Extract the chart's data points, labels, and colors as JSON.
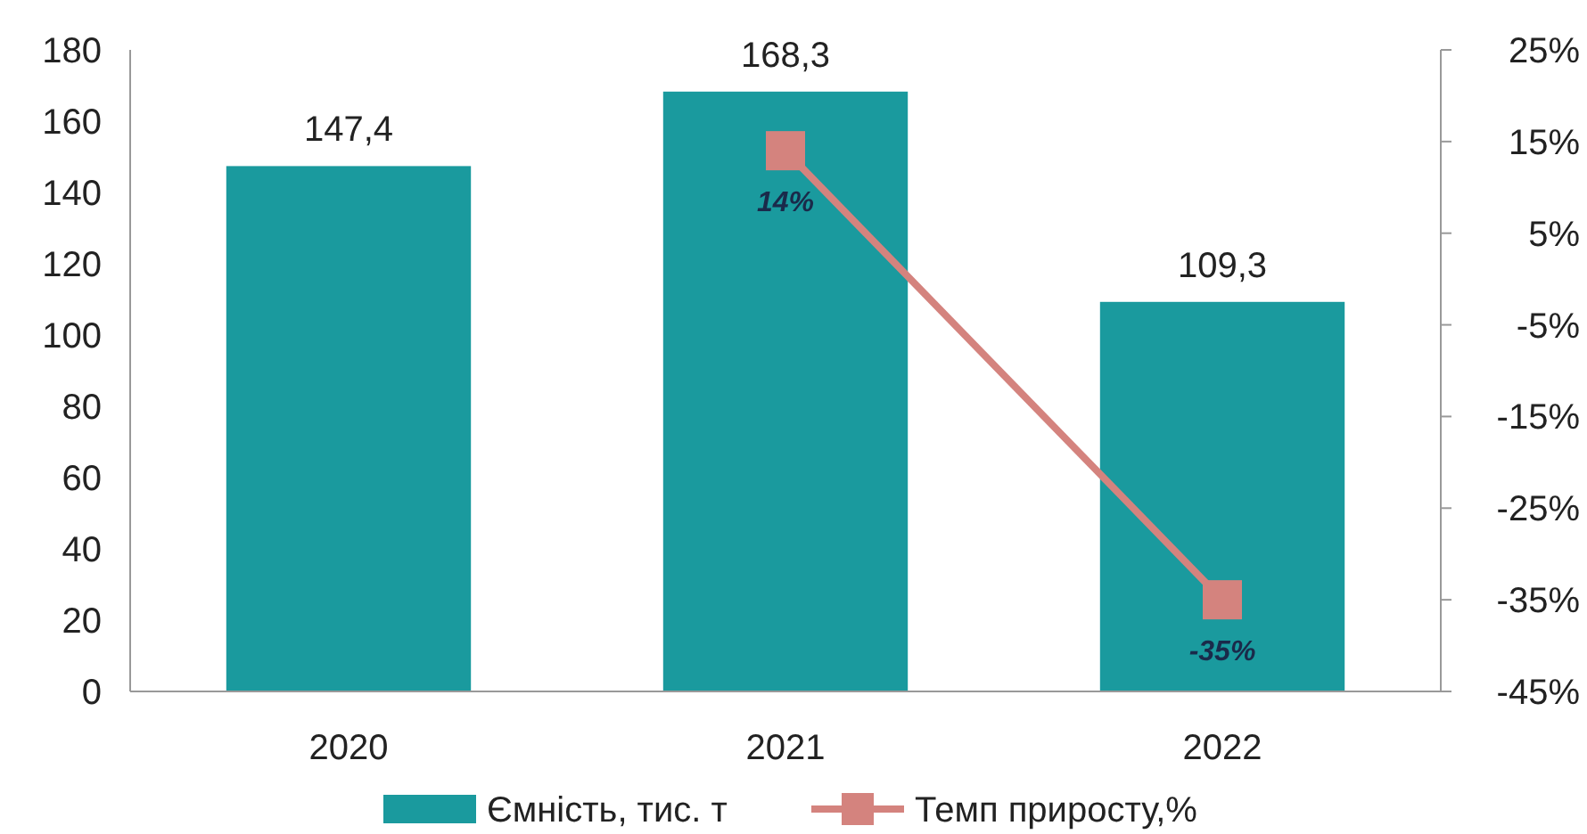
{
  "chart_data": {
    "type": "bar",
    "categories": [
      "2020",
      "2021",
      "2022"
    ],
    "series": [
      {
        "name": "Ємність, тис. т",
        "color": "#1a9a9e",
        "values": [
          147.4,
          168.3,
          109.3
        ],
        "value_labels": [
          "147,4",
          "168,3",
          "109,3"
        ]
      },
      {
        "name": "Темп приросту,%",
        "type": "line",
        "axis": "y2",
        "color": "#d4837e",
        "values": [
          null,
          14,
          -35
        ],
        "value_labels": [
          null,
          "14%",
          "-35%"
        ],
        "marker": "square"
      }
    ],
    "ylim": [
      0,
      180
    ],
    "yticks": [
      0,
      20,
      40,
      60,
      80,
      100,
      120,
      140,
      160,
      180
    ],
    "y2lim": [
      -45,
      25
    ],
    "y2ticks": [
      {
        "value": -45,
        "label": "-45%"
      },
      {
        "value": -35,
        "label": "-35%"
      },
      {
        "value": -25,
        "label": "-25%"
      },
      {
        "value": -15,
        "label": "-15%"
      },
      {
        "value": -5,
        "label": "-5%"
      },
      {
        "value": 5,
        "label": "5%"
      },
      {
        "value": 15,
        "label": "15%"
      },
      {
        "value": 25,
        "label": "25%"
      }
    ],
    "legend": "bottom",
    "grid": false
  }
}
